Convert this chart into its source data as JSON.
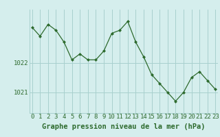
{
  "x": [
    0,
    1,
    2,
    3,
    4,
    5,
    6,
    7,
    8,
    9,
    10,
    11,
    12,
    13,
    14,
    15,
    16,
    17,
    18,
    19,
    20,
    21,
    22,
    23
  ],
  "y": [
    1023.2,
    1022.9,
    1023.3,
    1023.1,
    1022.7,
    1022.1,
    1022.3,
    1022.1,
    1022.1,
    1022.4,
    1023.0,
    1023.1,
    1023.4,
    1022.7,
    1022.2,
    1021.6,
    1021.3,
    1021.0,
    1020.7,
    1021.0,
    1021.5,
    1021.7,
    1021.4,
    1021.1
  ],
  "line_color": "#2d6a2d",
  "marker_color": "#2d6a2d",
  "bg_color": "#d5eeed",
  "grid_color": "#a8d0ce",
  "title": "Graphe pression niveau de la mer (hPa)",
  "xlabel_ticks": [
    "0",
    "1",
    "2",
    "3",
    "4",
    "5",
    "6",
    "7",
    "8",
    "9",
    "10",
    "11",
    "12",
    "13",
    "14",
    "15",
    "16",
    "17",
    "18",
    "19",
    "20",
    "21",
    "22",
    "23"
  ],
  "yticks": [
    1021,
    1022
  ],
  "ylim": [
    1020.3,
    1023.8
  ],
  "xlim": [
    -0.3,
    23.3
  ],
  "title_color": "#2d6a2d",
  "title_fontsize": 7.5,
  "tick_fontsize": 6.5,
  "tick_color": "#2d6a2d"
}
